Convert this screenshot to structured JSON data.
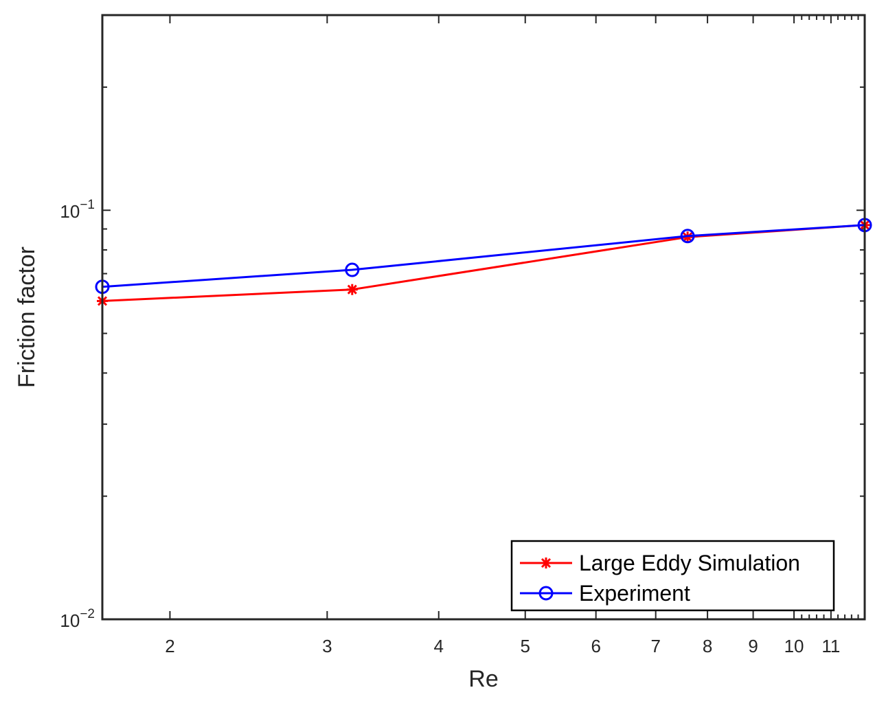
{
  "chart_data": {
    "type": "line",
    "xlabel": "Re",
    "ylabel": "Friction factor",
    "x_scale": "log",
    "y_scale": "log",
    "xlim": [
      1.68,
      12
    ],
    "ylim": [
      0.01,
      0.3
    ],
    "x_ticks": [
      {
        "value": 2,
        "label": "2"
      },
      {
        "value": 3,
        "label": "3"
      },
      {
        "value": 4,
        "label": "4"
      },
      {
        "value": 5,
        "label": "5"
      },
      {
        "value": 6,
        "label": "6"
      },
      {
        "value": 7,
        "label": "7"
      },
      {
        "value": 8,
        "label": "8"
      },
      {
        "value": 9,
        "label": "9"
      },
      {
        "value": 10,
        "label": "10"
      },
      {
        "value": 11,
        "label": "11"
      }
    ],
    "y_ticks": [
      {
        "value": 0.01,
        "base": "10",
        "exp": "−2"
      },
      {
        "value": 0.1,
        "base": "10",
        "exp": "−1"
      }
    ],
    "grid": false,
    "legend_position": "bottom-right",
    "series": [
      {
        "name": "Large Eddy Simulation",
        "color": "#ff0000",
        "marker": "asterisk",
        "x": [
          1.68,
          3.2,
          7.6,
          12
        ],
        "y": [
          0.06,
          0.064,
          0.086,
          0.092
        ]
      },
      {
        "name": "Experiment",
        "color": "#0000ff",
        "marker": "circle",
        "x": [
          1.68,
          3.2,
          7.6,
          12
        ],
        "y": [
          0.065,
          0.0715,
          0.0865,
          0.092
        ]
      }
    ]
  }
}
